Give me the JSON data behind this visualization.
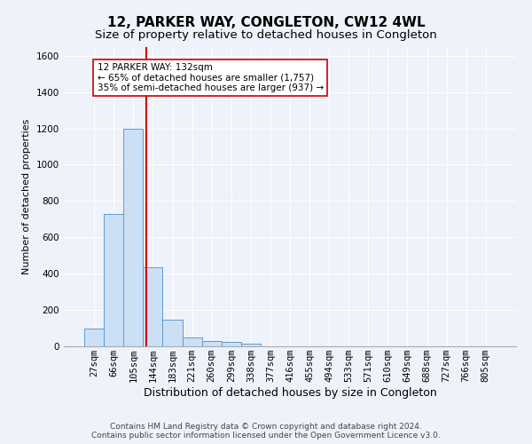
{
  "title": "12, PARKER WAY, CONGLETON, CW12 4WL",
  "subtitle": "Size of property relative to detached houses in Congleton",
  "xlabel": "Distribution of detached houses by size in Congleton",
  "ylabel": "Number of detached properties",
  "categories": [
    "27sqm",
    "66sqm",
    "105sqm",
    "144sqm",
    "183sqm",
    "221sqm",
    "260sqm",
    "299sqm",
    "338sqm",
    "377sqm",
    "416sqm",
    "455sqm",
    "494sqm",
    "533sqm",
    "571sqm",
    "610sqm",
    "649sqm",
    "688sqm",
    "727sqm",
    "766sqm",
    "805sqm"
  ],
  "values": [
    100,
    730,
    1200,
    435,
    145,
    50,
    30,
    25,
    15,
    0,
    0,
    0,
    0,
    0,
    0,
    0,
    0,
    0,
    0,
    0,
    0
  ],
  "bar_color": "#cce0f5",
  "bar_edge_color": "#5b9bd5",
  "vline_color": "#cc0000",
  "vline_x": 2.65,
  "annotation_text": "12 PARKER WAY: 132sqm\n← 65% of detached houses are smaller (1,757)\n35% of semi-detached houses are larger (937) →",
  "annotation_box_color": "#ffffff",
  "annotation_box_edge": "#cc0000",
  "ylim": [
    0,
    1650
  ],
  "yticks": [
    0,
    200,
    400,
    600,
    800,
    1000,
    1200,
    1400,
    1600
  ],
  "background_color": "#eef2fa",
  "plot_bg_color": "#eef2fa",
  "footer": "Contains HM Land Registry data © Crown copyright and database right 2024.\nContains public sector information licensed under the Open Government Licence v3.0.",
  "title_fontsize": 11,
  "subtitle_fontsize": 9.5,
  "xlabel_fontsize": 9,
  "ylabel_fontsize": 8,
  "tick_fontsize": 7.5,
  "annot_fontsize": 7.5,
  "footer_fontsize": 6.5
}
